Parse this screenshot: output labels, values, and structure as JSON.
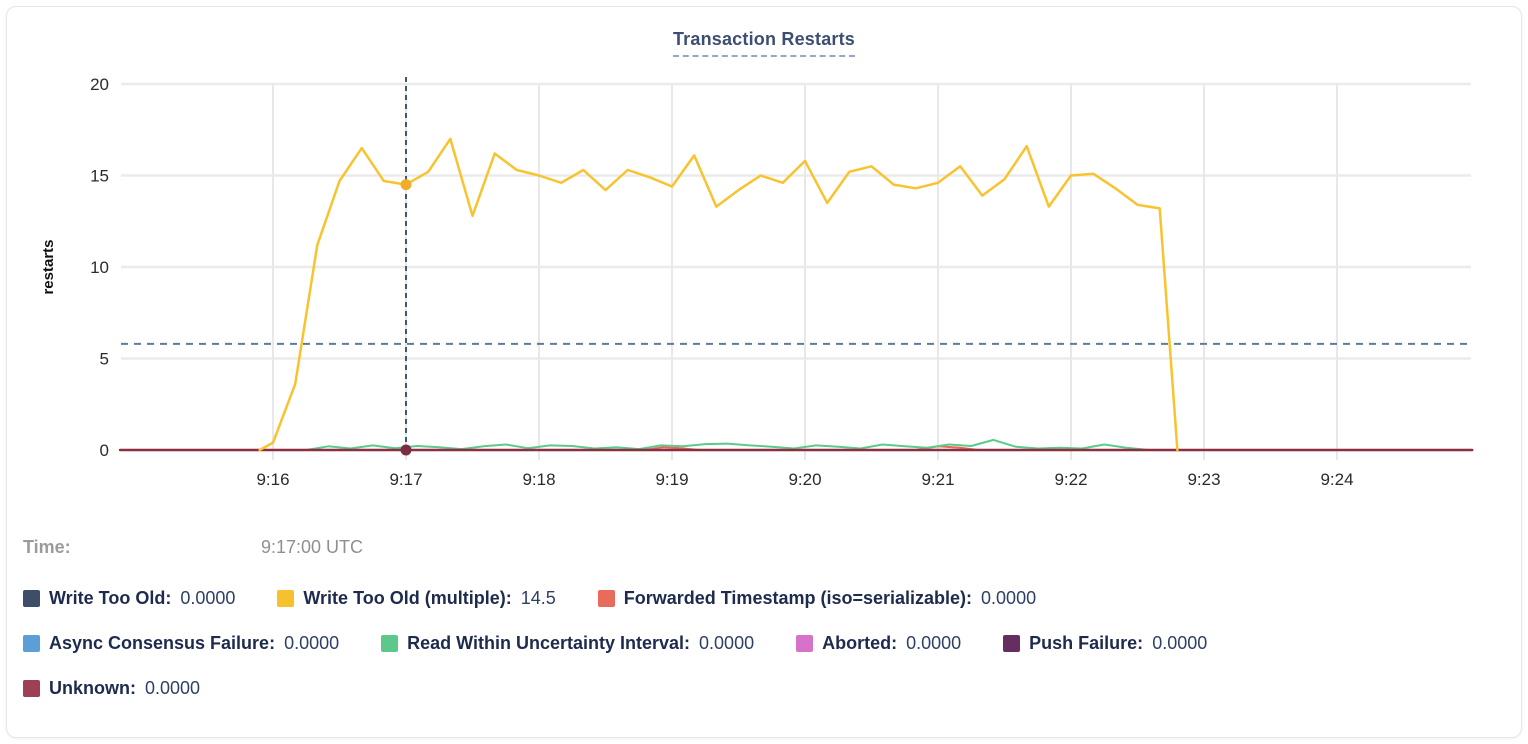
{
  "title": "Transaction Restarts",
  "time_row": {
    "label": "Time:",
    "value": "9:17:00 UTC"
  },
  "colors": {
    "grid_h": "#ebebeb",
    "grid_v": "#e8e8e8",
    "v_guide": "#3f596f",
    "h_guide": "#5c7d9a",
    "title_text": "#3c4f73",
    "legend_text": "#1e2b4f"
  },
  "legend_rows": [
    [
      {
        "label": "Write Too Old:",
        "value": "0.0000",
        "color": "#3e4d68"
      },
      {
        "label": "Write Too Old (multiple):",
        "value": "14.5",
        "color": "#f5c12e"
      },
      {
        "label": "Forwarded Timestamp (iso=serializable):",
        "value": "0.0000",
        "color": "#e86b5c"
      }
    ],
    [
      {
        "label": "Async Consensus Failure:",
        "value": "0.0000",
        "color": "#5b9fd6"
      },
      {
        "label": "Read Within Uncertainty Interval:",
        "value": "0.0000",
        "color": "#5dc88a"
      },
      {
        "label": "Aborted:",
        "value": "0.0000",
        "color": "#d673c8"
      },
      {
        "label": "Push Failure:",
        "value": "0.0000",
        "color": "#652d60"
      }
    ],
    [
      {
        "label": "Unknown:",
        "value": "0.0000",
        "color": "#9d3f56"
      }
    ]
  ],
  "chart_data": {
    "type": "line",
    "title": "Transaction Restarts",
    "ylabel": "restarts",
    "ylim": [
      0,
      20
    ],
    "y_ticks": [
      0,
      5,
      10,
      15,
      20
    ],
    "x_tick_labels": [
      "9:16",
      "9:17",
      "9:18",
      "9:19",
      "9:20",
      "9:21",
      "9:22",
      "9:23",
      "9:24"
    ],
    "x_unit": "seconds after 9:16:00 UTC",
    "grid": true,
    "legend_position": "bottom",
    "hover": {
      "time": "9:17:00 UTC",
      "t": 60,
      "h_guide_value": 5.8,
      "dots": [
        {
          "t": 60,
          "v": 14.5,
          "color": "#f0ad25",
          "r": 5.5,
          "series": "Write Too Old (multiple)"
        },
        {
          "t": 60,
          "v": 0,
          "color": "#7c2d44",
          "r": 5.5,
          "series": "Unknown"
        }
      ]
    },
    "series": [
      {
        "name": "Write Too Old",
        "color": "#3e4d68",
        "width": 2,
        "current": "0.0000",
        "points": [
          [
            -69,
            0
          ],
          [
            541,
            0
          ]
        ]
      },
      {
        "name": "Async Consensus Failure",
        "color": "#5b9fd6",
        "width": 2,
        "current": "0.0000",
        "points": [
          [
            -69,
            0
          ],
          [
            541,
            0
          ]
        ]
      },
      {
        "name": "Aborted",
        "color": "#d673c8",
        "width": 2,
        "current": "0.0000",
        "points": [
          [
            -69,
            0
          ],
          [
            541,
            0
          ]
        ]
      },
      {
        "name": "Push Failure",
        "color": "#652d60",
        "width": 2,
        "current": "0.0000",
        "points": [
          [
            -69,
            0
          ],
          [
            541,
            0
          ]
        ]
      },
      {
        "name": "Forwarded Timestamp (iso=serializable)",
        "color": "#e8695b",
        "width": 2,
        "current": "0.0000",
        "points": [
          [
            -69,
            0
          ],
          [
            168,
            0
          ],
          [
            176,
            0.15
          ],
          [
            184,
            0.1
          ],
          [
            192,
            0
          ],
          [
            290,
            0
          ],
          [
            300,
            0.2
          ],
          [
            310,
            0.12
          ],
          [
            318,
            0
          ],
          [
            541,
            0
          ]
        ]
      },
      {
        "name": "Read Within Uncertainty Interval",
        "color": "#5ec98b",
        "width": 2,
        "current": "0.0000",
        "points": [
          [
            15,
            0
          ],
          [
            25,
            0.2
          ],
          [
            35,
            0.08
          ],
          [
            45,
            0.25
          ],
          [
            55,
            0.1
          ],
          [
            65,
            0.22
          ],
          [
            75,
            0.15
          ],
          [
            85,
            0.05
          ],
          [
            95,
            0.2
          ],
          [
            105,
            0.3
          ],
          [
            115,
            0.1
          ],
          [
            125,
            0.25
          ],
          [
            135,
            0.22
          ],
          [
            145,
            0.08
          ],
          [
            155,
            0.15
          ],
          [
            165,
            0.05
          ],
          [
            175,
            0.25
          ],
          [
            185,
            0.2
          ],
          [
            195,
            0.32
          ],
          [
            205,
            0.35
          ],
          [
            215,
            0.25
          ],
          [
            225,
            0.18
          ],
          [
            235,
            0.08
          ],
          [
            245,
            0.25
          ],
          [
            255,
            0.18
          ],
          [
            265,
            0.08
          ],
          [
            275,
            0.3
          ],
          [
            285,
            0.2
          ],
          [
            295,
            0.12
          ],
          [
            305,
            0.3
          ],
          [
            315,
            0.22
          ],
          [
            325,
            0.55
          ],
          [
            335,
            0.18
          ],
          [
            345,
            0.08
          ],
          [
            355,
            0.12
          ],
          [
            365,
            0.08
          ],
          [
            375,
            0.3
          ],
          [
            385,
            0.12
          ],
          [
            395,
            0
          ]
        ]
      },
      {
        "name": "Unknown",
        "color": "#8e2e42",
        "width": 2.5,
        "current": "0.0000",
        "points": [
          [
            -69,
            0
          ],
          [
            541,
            0
          ]
        ]
      },
      {
        "name": "Write Too Old (multiple)",
        "color": "#f8c32f",
        "width": 2.5,
        "current": "14.5",
        "points": [
          [
            -6,
            0
          ],
          [
            0,
            0.4
          ],
          [
            10,
            3.6
          ],
          [
            20,
            11.2
          ],
          [
            30,
            14.7
          ],
          [
            40,
            16.5
          ],
          [
            50,
            14.7
          ],
          [
            60,
            14.5
          ],
          [
            70,
            15.2
          ],
          [
            80,
            17.0
          ],
          [
            90,
            12.8
          ],
          [
            100,
            16.2
          ],
          [
            110,
            15.3
          ],
          [
            120,
            15.0
          ],
          [
            130,
            14.6
          ],
          [
            140,
            15.3
          ],
          [
            150,
            14.2
          ],
          [
            160,
            15.3
          ],
          [
            170,
            14.9
          ],
          [
            180,
            14.4
          ],
          [
            190,
            16.1
          ],
          [
            200,
            13.3
          ],
          [
            210,
            14.2
          ],
          [
            220,
            15.0
          ],
          [
            230,
            14.6
          ],
          [
            240,
            15.8
          ],
          [
            250,
            13.5
          ],
          [
            260,
            15.2
          ],
          [
            270,
            15.5
          ],
          [
            280,
            14.5
          ],
          [
            290,
            14.3
          ],
          [
            300,
            14.6
          ],
          [
            310,
            15.5
          ],
          [
            320,
            13.9
          ],
          [
            330,
            14.8
          ],
          [
            340,
            16.6
          ],
          [
            350,
            13.3
          ],
          [
            360,
            15.0
          ],
          [
            370,
            15.1
          ],
          [
            380,
            14.3
          ],
          [
            390,
            13.4
          ],
          [
            400,
            13.2
          ],
          [
            408,
            0
          ]
        ]
      }
    ]
  }
}
